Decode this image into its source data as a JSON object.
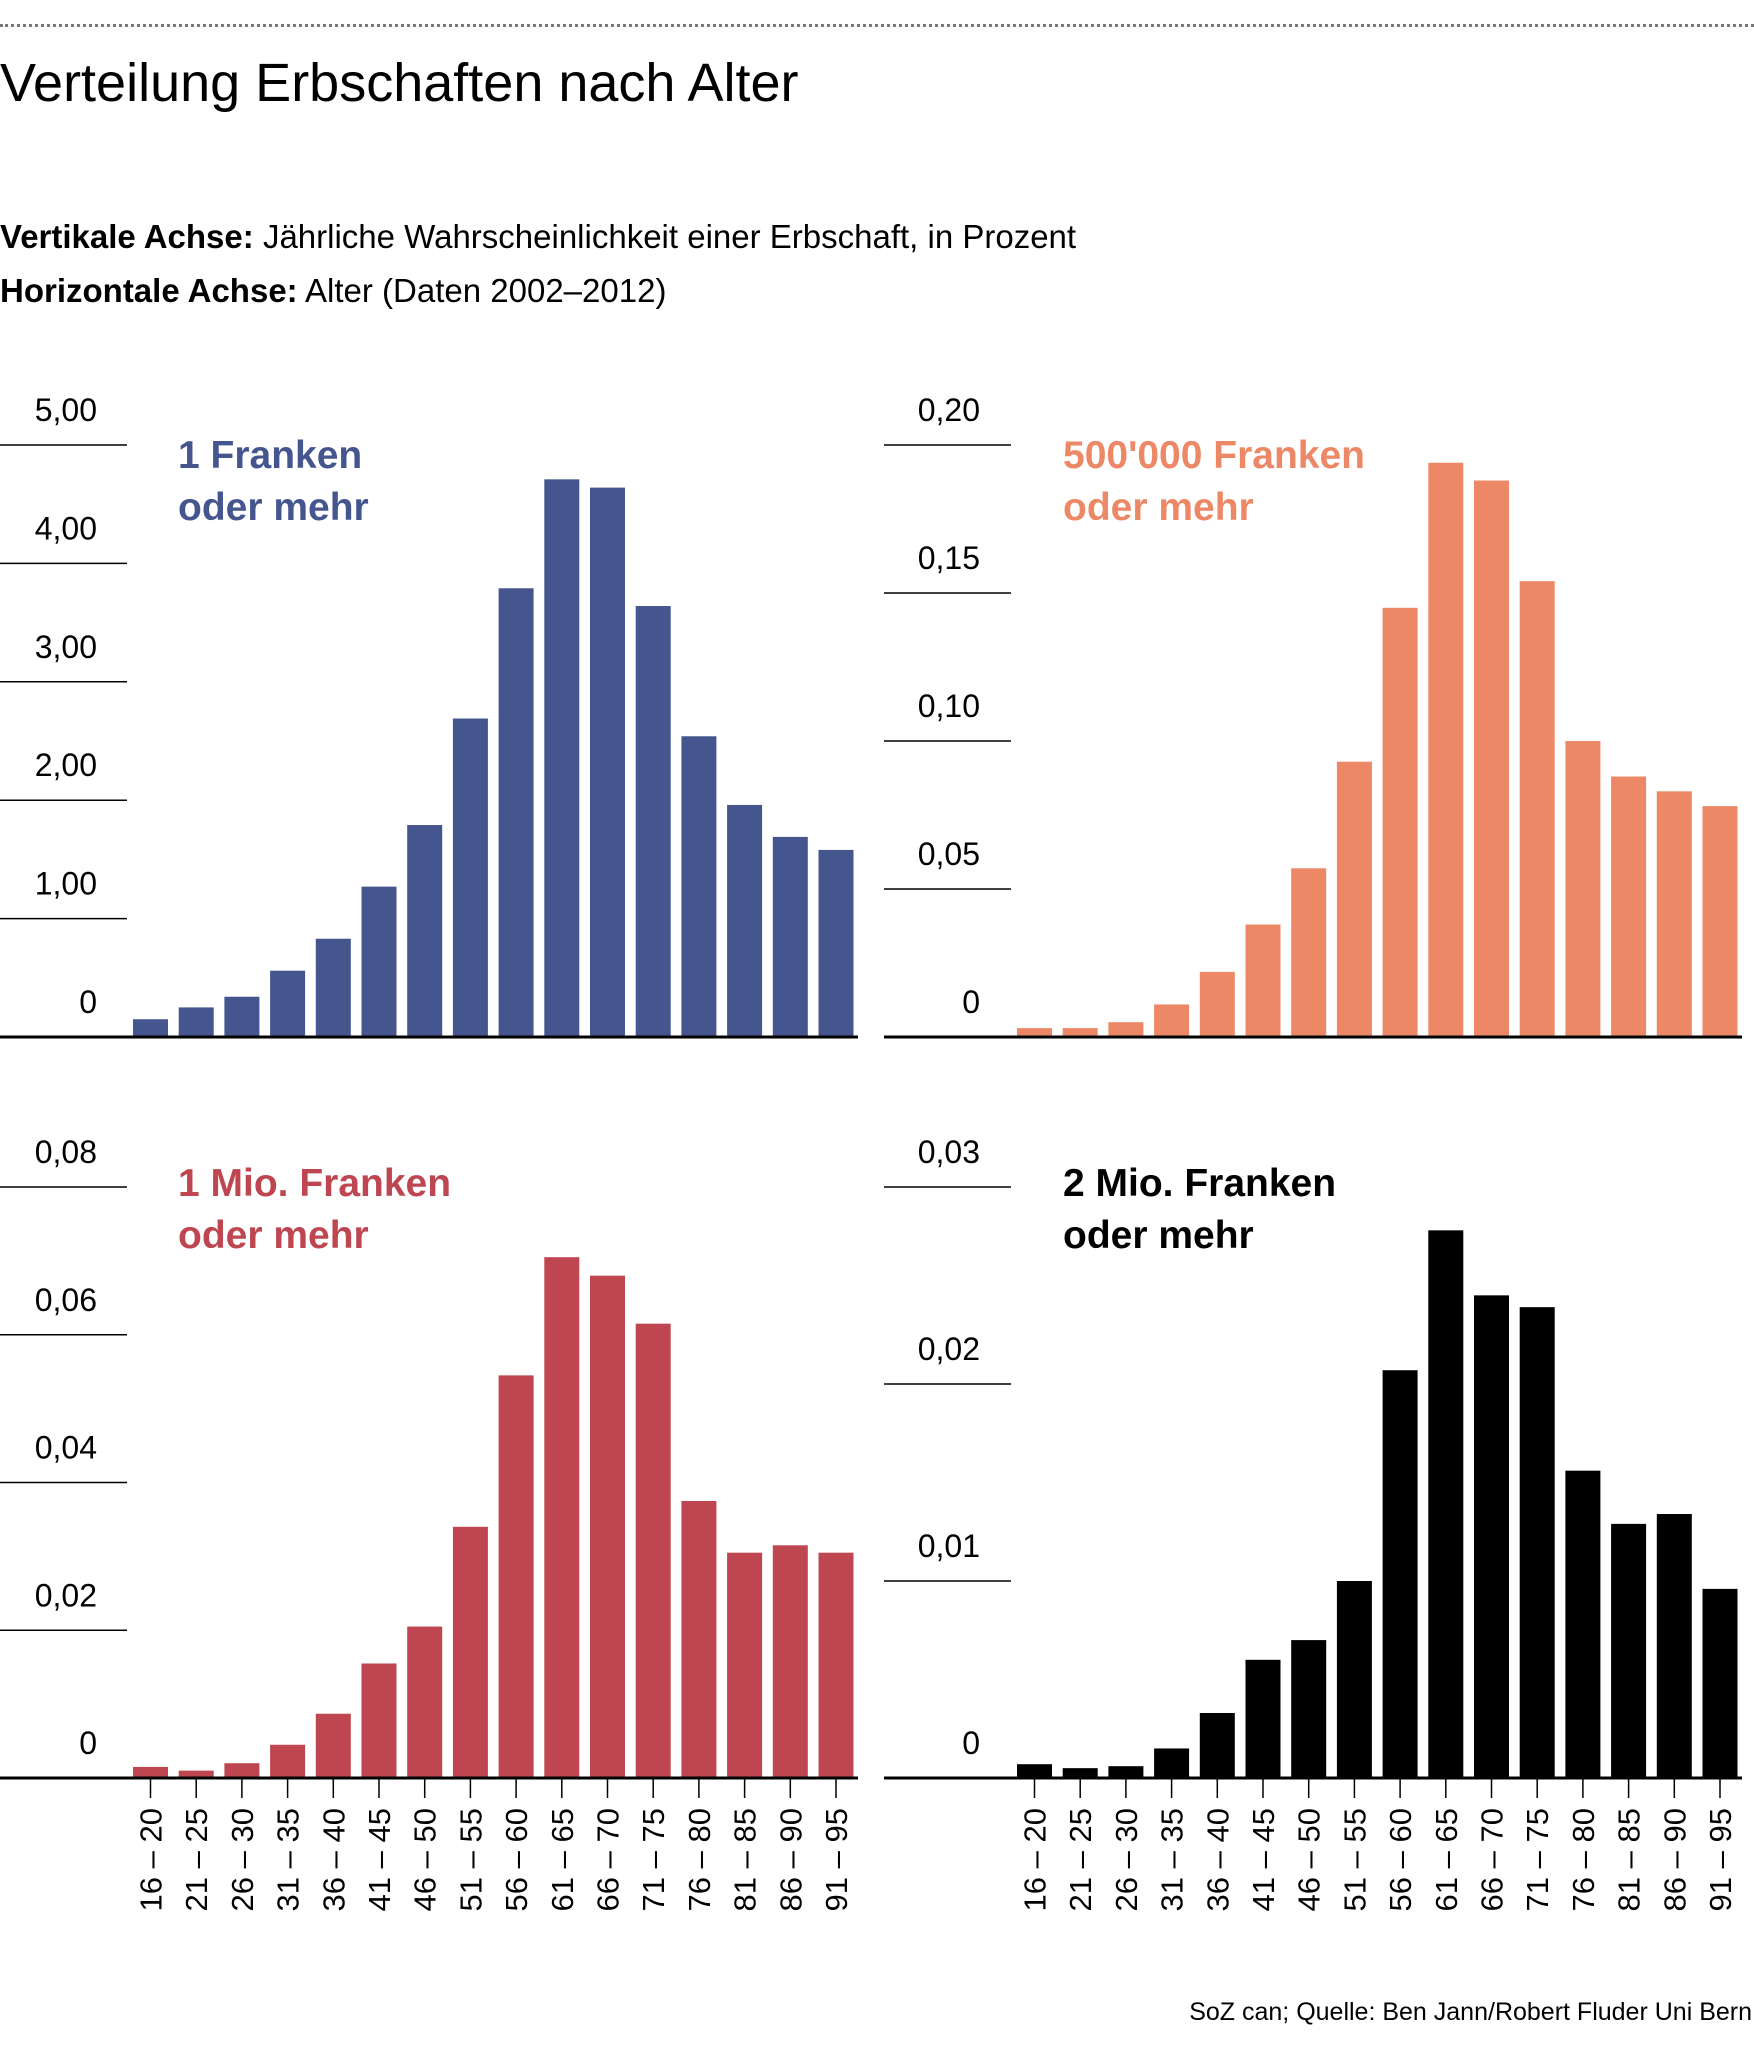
{
  "header": {
    "title": "Verteilung Erbschaften nach Alter",
    "vertical_axis_label": "Vertikale Achse:",
    "vertical_axis_text": "Jährliche Wahrscheinlichkeit einer Erbschaft, in Prozent",
    "horizontal_axis_label": "Horizontale Achse:",
    "horizontal_axis_text": "Alter (Daten 2002–2012)"
  },
  "footer": {
    "source": "SoZ can; Quelle: Ben Jann/Robert Fluder Uni Bern"
  },
  "chart_data": [
    {
      "type": "bar",
      "title": "1 Franken oder mehr",
      "title_lines": [
        "1 Franken",
        "oder mehr"
      ],
      "color": "#45568f",
      "categories": [
        "16 – 20",
        "21 – 25",
        "26 – 30",
        "31 – 35",
        "36 – 40",
        "41 – 45",
        "46 – 50",
        "51 – 55",
        "56 – 60",
        "61 – 65",
        "66 – 70",
        "71 – 75",
        "76 – 80",
        "81 – 85",
        "86 – 90",
        "91 – 95"
      ],
      "values": [
        0.15,
        0.25,
        0.34,
        0.56,
        0.83,
        1.27,
        1.79,
        2.69,
        3.79,
        4.71,
        4.64,
        3.64,
        2.54,
        1.96,
        1.69,
        1.58
      ],
      "ylim": [
        0,
        5
      ],
      "yticks": [
        0,
        1,
        2,
        3,
        4,
        5
      ],
      "ytick_labels": [
        "0",
        "1,00",
        "2,00",
        "3,00",
        "4,00",
        "5,00"
      ],
      "xlabel": "Alter",
      "ylabel": "Prozent"
    },
    {
      "type": "bar",
      "title": "500'000 Franken oder mehr",
      "title_lines": [
        "500'000 Franken",
        "oder mehr"
      ],
      "color": "#ec8866",
      "categories": [
        "16 – 20",
        "21 – 25",
        "26 – 30",
        "31 – 35",
        "36 – 40",
        "41 – 45",
        "46 – 50",
        "51 – 55",
        "56 – 60",
        "61 – 65",
        "66 – 70",
        "71 – 75",
        "76 – 80",
        "81 – 85",
        "86 – 90",
        "91 – 95"
      ],
      "values": [
        0.003,
        0.003,
        0.005,
        0.011,
        0.022,
        0.038,
        0.057,
        0.093,
        0.145,
        0.194,
        0.188,
        0.154,
        0.1,
        0.088,
        0.083,
        0.078
      ],
      "ylim": [
        0,
        0.2
      ],
      "yticks": [
        0,
        0.05,
        0.1,
        0.15,
        0.2
      ],
      "ytick_labels": [
        "0",
        "0,05",
        "0,10",
        "0,15",
        "0,20"
      ],
      "xlabel": "Alter",
      "ylabel": "Prozent"
    },
    {
      "type": "bar",
      "title": "1 Mio. Franken oder mehr",
      "title_lines": [
        "1 Mio. Franken",
        "oder mehr"
      ],
      "color": "#be4650",
      "categories": [
        "16 – 20",
        "21 – 25",
        "26 – 30",
        "31 – 35",
        "36 – 40",
        "41 – 45",
        "46 – 50",
        "51 – 55",
        "56 – 60",
        "61 – 65",
        "66 – 70",
        "71 – 75",
        "76 – 80",
        "81 – 85",
        "86 – 90",
        "91 – 95"
      ],
      "values": [
        0.0015,
        0.001,
        0.002,
        0.0045,
        0.0087,
        0.0155,
        0.0205,
        0.034,
        0.0545,
        0.0705,
        0.068,
        0.0615,
        0.0375,
        0.0305,
        0.0315,
        0.0305
      ],
      "ylim": [
        0,
        0.08
      ],
      "yticks": [
        0,
        0.02,
        0.04,
        0.06,
        0.08
      ],
      "ytick_labels": [
        "0",
        "0,02",
        "0,04",
        "0,06",
        "0,08"
      ],
      "xlabel": "Alter",
      "ylabel": "Prozent"
    },
    {
      "type": "bar",
      "title": "2 Mio. Franken oder mehr",
      "title_lines": [
        "2 Mio. Franken",
        "oder mehr"
      ],
      "color": "#000000",
      "categories": [
        "16 – 20",
        "21 – 25",
        "26 – 30",
        "31 – 35",
        "36 – 40",
        "41 – 45",
        "46 – 50",
        "51 – 55",
        "56 – 60",
        "61 – 65",
        "66 – 70",
        "71 – 75",
        "76 – 80",
        "81 – 85",
        "86 – 90",
        "91 – 95"
      ],
      "values": [
        0.0007,
        0.0005,
        0.0006,
        0.0015,
        0.0033,
        0.006,
        0.007,
        0.01,
        0.0207,
        0.0278,
        0.0245,
        0.0239,
        0.0156,
        0.0129,
        0.0134,
        0.0096
      ],
      "ylim": [
        0,
        0.03
      ],
      "yticks": [
        0,
        0.01,
        0.02,
        0.03
      ],
      "ytick_labels": [
        "0",
        "0,01",
        "0,02",
        "0,03"
      ],
      "xlabel": "Alter",
      "ylabel": "Prozent"
    }
  ]
}
